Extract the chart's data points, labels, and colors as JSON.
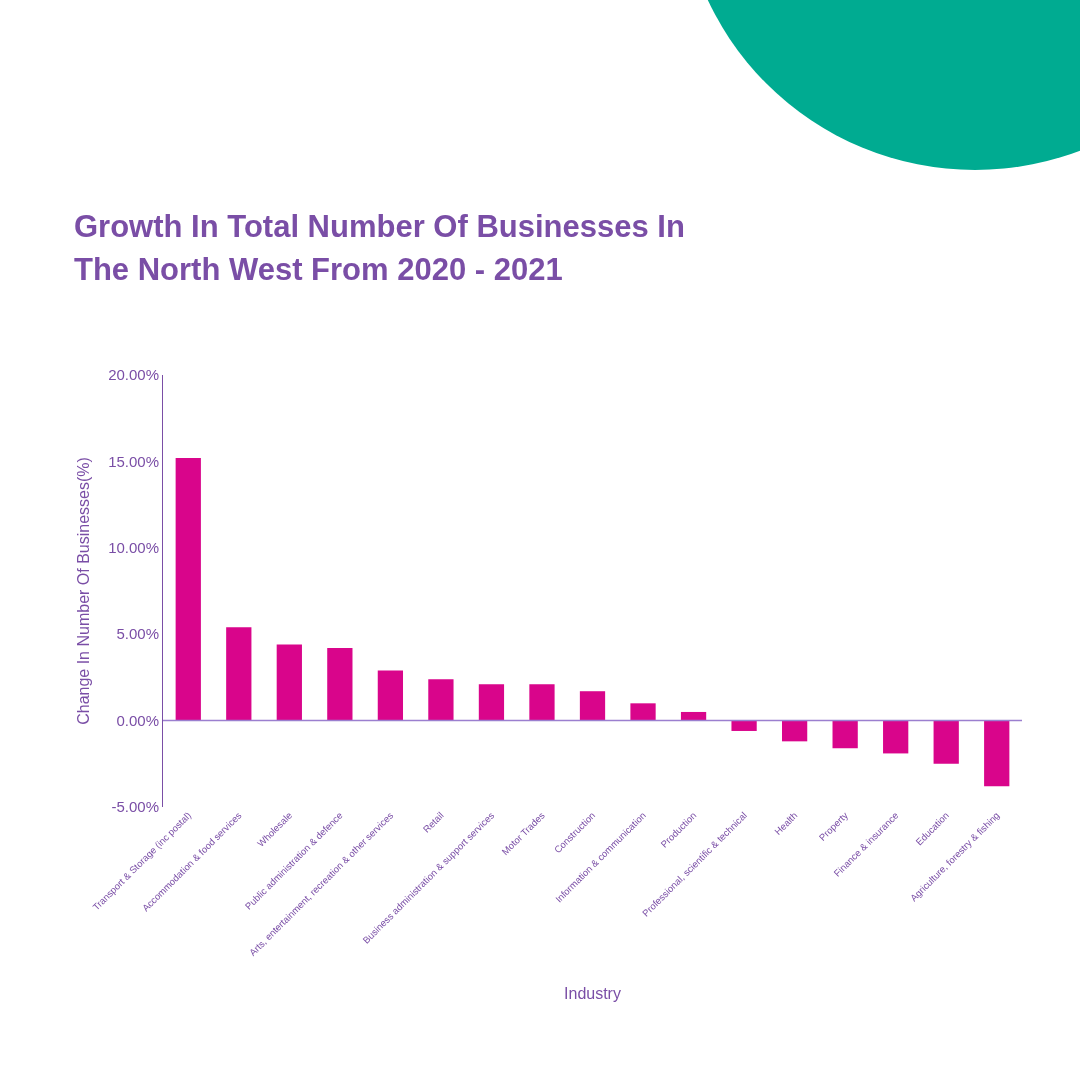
{
  "chart_data": {
    "type": "bar",
    "title": "Growth In Total Number Of Businesses In\nThe North West From 2020 - 2021",
    "xlabel": "Industry",
    "ylabel": "Change In Number Of Businesses(%)",
    "categories": [
      "Transport & Storage (inc postal)",
      "Accommodation & food services",
      "Wholesale",
      "Public administration & defence",
      "Arts, entertainment, recreation & other services",
      "Retail",
      "Business administration & support services",
      "Motor Trades",
      "Construction",
      "Information & communication",
      "Production",
      "Professional, scientific & technical",
      "Health",
      "Property",
      "Finance & insurance",
      "Education",
      "Agriculture, forestry & fishing"
    ],
    "values": [
      15.2,
      5.4,
      4.4,
      4.2,
      2.9,
      2.4,
      2.1,
      2.1,
      1.7,
      1.0,
      0.5,
      -0.6,
      -1.2,
      -1.6,
      -1.9,
      -2.5,
      -3.8
    ],
    "color": "#d9058b",
    "ylim": [
      -5,
      20
    ],
    "yticks": [
      {
        "value": -5,
        "label": "-5.00%"
      },
      {
        "value": 0,
        "label": "0.00%"
      },
      {
        "value": 5,
        "label": "5.00%"
      },
      {
        "value": 10,
        "label": "10.00%"
      },
      {
        "value": 15,
        "label": "15.00%"
      },
      {
        "value": 20,
        "label": "20.00%"
      }
    ],
    "grid": false,
    "ref_lines": [
      {
        "axis": "y",
        "value": 0,
        "color": "#9b7fcf"
      }
    ]
  }
}
